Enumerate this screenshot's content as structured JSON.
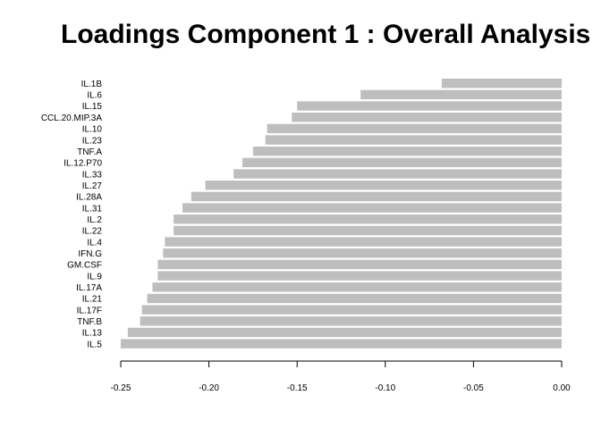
{
  "chart_data": {
    "type": "bar",
    "orientation": "horizontal",
    "title": "Loadings Component 1 : Overall Analysis",
    "xlabel": "",
    "ylabel": "",
    "xlim": [
      -0.25,
      0.0
    ],
    "xticks": [
      "-0.25",
      "-0.20",
      "-0.15",
      "-0.10",
      "-0.05",
      "0.00"
    ],
    "grid": false,
    "bar_color": "#bebebe",
    "categories": [
      "IL.1B",
      "IL.6",
      "IL.15",
      "CCL.20.MIP.3A",
      "IL.10",
      "IL.23",
      "TNF.A",
      "IL.12.P70",
      "IL.33",
      "IL.27",
      "IL.28A",
      "IL.31",
      "IL.2",
      "IL.22",
      "IL.4",
      "IFN.G",
      "GM.CSF",
      "IL.9",
      "IL.17A",
      "IL.21",
      "IL.17F",
      "TNF.B",
      "IL.13",
      "IL.5"
    ],
    "values": [
      -0.068,
      -0.114,
      -0.15,
      -0.153,
      -0.167,
      -0.168,
      -0.175,
      -0.181,
      -0.186,
      -0.202,
      -0.21,
      -0.215,
      -0.22,
      -0.22,
      -0.225,
      -0.226,
      -0.229,
      -0.229,
      -0.232,
      -0.235,
      -0.238,
      -0.239,
      -0.246,
      -0.25
    ]
  }
}
